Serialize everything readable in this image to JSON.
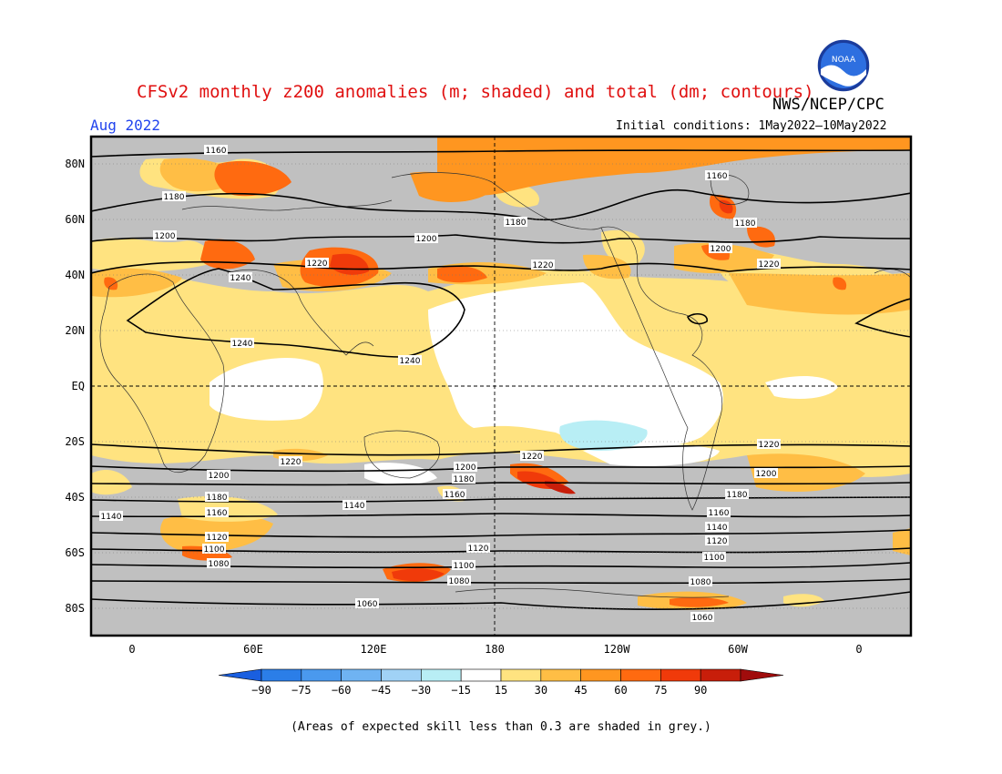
{
  "header": {
    "title": "CFSv2 monthly z200 anomalies (m; shaded) and total (dm; contours)",
    "agency": "NWS/NCEP/CPC",
    "month": "Aug 2022",
    "initial_conditions": "Initial conditions: 1May2022—10May2022",
    "logo_text": "NOAA"
  },
  "map": {
    "lat_labels": [
      "80N",
      "60N",
      "40N",
      "20N",
      "EQ",
      "20S",
      "40S",
      "60S",
      "80S"
    ],
    "lon_labels": [
      "0",
      "60E",
      "120E",
      "180",
      "120W",
      "60W",
      "0"
    ],
    "contour_labels": [
      "1060",
      "1080",
      "1100",
      "1120",
      "1140",
      "1160",
      "1180",
      "1200",
      "1220",
      "1240"
    ],
    "grey_meaning": "skill < 0.3"
  },
  "colorbar": {
    "ticks": [
      "−90",
      "−75",
      "−60",
      "−45",
      "−30",
      "−15",
      "15",
      "30",
      "45",
      "60",
      "75",
      "90"
    ],
    "colors": [
      "#1a5fe0",
      "#2b7ee8",
      "#4a99ee",
      "#6fb3f2",
      "#a0d2f6",
      "#b8eef5",
      "#ffffff",
      "#ffe380",
      "#ffbe45",
      "#ff9620",
      "#ff6a10",
      "#f03a0a",
      "#c81e0a",
      "#a00c0c"
    ]
  },
  "footnote": "(Areas of expected skill less than 0.3 are shaded in grey.)"
}
